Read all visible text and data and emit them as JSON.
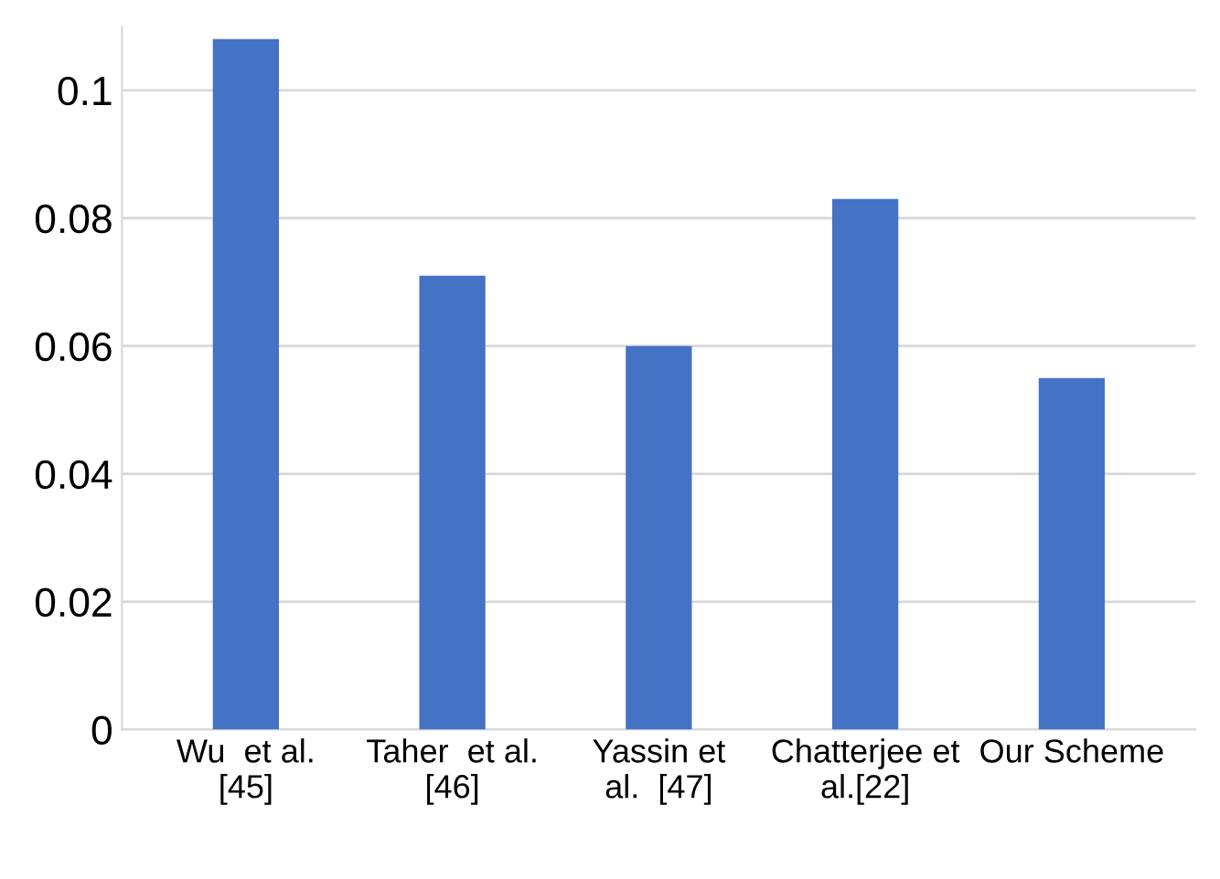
{
  "chart_data": {
    "type": "bar",
    "categories": [
      "Wu  et al.\n[45]",
      "Taher  et al.\n[46]",
      "Yassin et\nal.  [47]",
      "Chatterjee et\nal.[22]",
      "Our Scheme"
    ],
    "values": [
      0.108,
      0.071,
      0.06,
      0.083,
      0.055
    ],
    "color": "#4472c4",
    "ylim": [
      0,
      0.11
    ],
    "yticks": [
      0,
      0.02,
      0.04,
      0.06,
      0.08,
      0.1
    ],
    "grid": "y"
  }
}
